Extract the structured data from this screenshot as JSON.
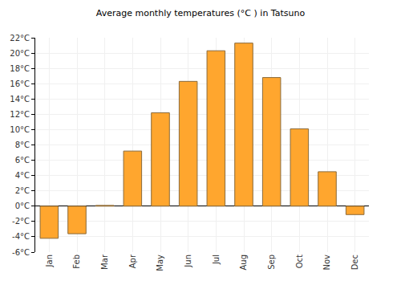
{
  "chart_data": {
    "type": "bar",
    "title": "Average monthly temperatures (°C ) in Tatsuno",
    "categories": [
      "Jan",
      "Feb",
      "Mar",
      "Apr",
      "May",
      "Jun",
      "Jul",
      "Aug",
      "Sep",
      "Oct",
      "Nov",
      "Dec"
    ],
    "values": [
      -4.2,
      -3.6,
      0.1,
      7.2,
      12.2,
      16.3,
      20.3,
      21.3,
      16.8,
      10.1,
      4.5,
      -1.1
    ],
    "color": "#ffa62e",
    "ylim": [
      -6,
      22
    ],
    "yticks": [
      {
        "value": -6,
        "label": "-6°C"
      },
      {
        "value": -4,
        "label": "-4°C"
      },
      {
        "value": -2,
        "label": "-2°C"
      },
      {
        "value": 0,
        "label": "0°C"
      },
      {
        "value": 2,
        "label": "2°C"
      },
      {
        "value": 4,
        "label": "4°C"
      },
      {
        "value": 6,
        "label": "6°C"
      },
      {
        "value": 8,
        "label": "8°C"
      },
      {
        "value": 10,
        "label": "10°C"
      },
      {
        "value": 12,
        "label": "12°C"
      },
      {
        "value": 14,
        "label": "14°C"
      },
      {
        "value": 16,
        "label": "16°C"
      },
      {
        "value": 18,
        "label": "18°C"
      },
      {
        "value": 20,
        "label": "20°C"
      },
      {
        "value": 22,
        "label": "22°C"
      }
    ],
    "grid": true
  }
}
